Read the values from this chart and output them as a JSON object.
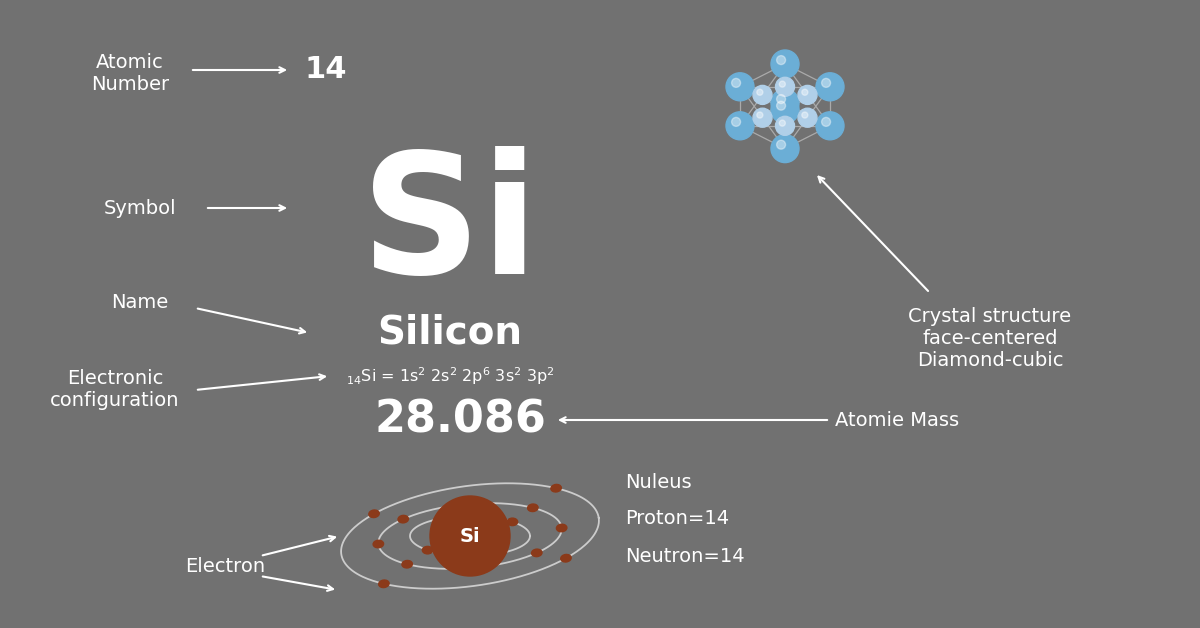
{
  "bg_color": "#717171",
  "text_color": "#ffffff",
  "nucleus_color": "#8B3A1A",
  "electron_color": "#8B3A1A",
  "orbit_color": "#cccccc",
  "symbol": "Si",
  "symbol_fontsize": 120,
  "name": "Silicon",
  "name_fontsize": 28,
  "atomic_number": "14",
  "atomic_mass": "28.086",
  "atomic_mass_fontsize": 32,
  "labels": {
    "atomic_number_label": "Atomic\nNumber",
    "symbol_label": "Symbol",
    "name_label": "Name",
    "elec_config_label": "Electronic\nconfiguration",
    "atomic_mass_label": "Atomie Mass",
    "nucleus_label": "Nuleus",
    "proton_label": "Proton=14",
    "neutron_label": "Neutron=14",
    "electron_label": "Electron",
    "crystal_label": "Crystal structure\nface-centered\nDiamond-cubic"
  }
}
